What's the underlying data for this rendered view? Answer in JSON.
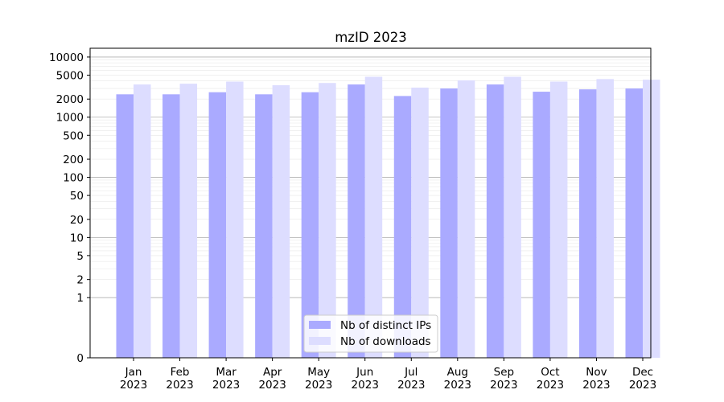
{
  "chart_data": {
    "type": "bar",
    "title": "mzID 2023",
    "xlabel": "",
    "ylabel": "",
    "yscale": "symlog",
    "ylim": [
      0,
      14000
    ],
    "yticks": [
      0,
      1,
      2,
      5,
      10,
      20,
      50,
      100,
      200,
      500,
      1000,
      2000,
      5000,
      10000
    ],
    "categories": [
      "Jan",
      "Feb",
      "Mar",
      "Apr",
      "May",
      "Jun",
      "Jul",
      "Aug",
      "Sep",
      "Oct",
      "Nov",
      "Dec"
    ],
    "category_sublabel": "2023",
    "series": [
      {
        "name": "Nb of distinct IPs",
        "color": "#aaaaff",
        "values": [
          2400,
          2400,
          2600,
          2400,
          2600,
          3500,
          2250,
          3000,
          3500,
          2650,
          2900,
          3000
        ]
      },
      {
        "name": "Nb of downloads",
        "color": "#ddddff",
        "values": [
          3500,
          3600,
          3900,
          3400,
          3700,
          4700,
          3100,
          4100,
          4700,
          3900,
          4300,
          4200
        ]
      }
    ],
    "grid": true,
    "legend_position": "bottom-center"
  }
}
